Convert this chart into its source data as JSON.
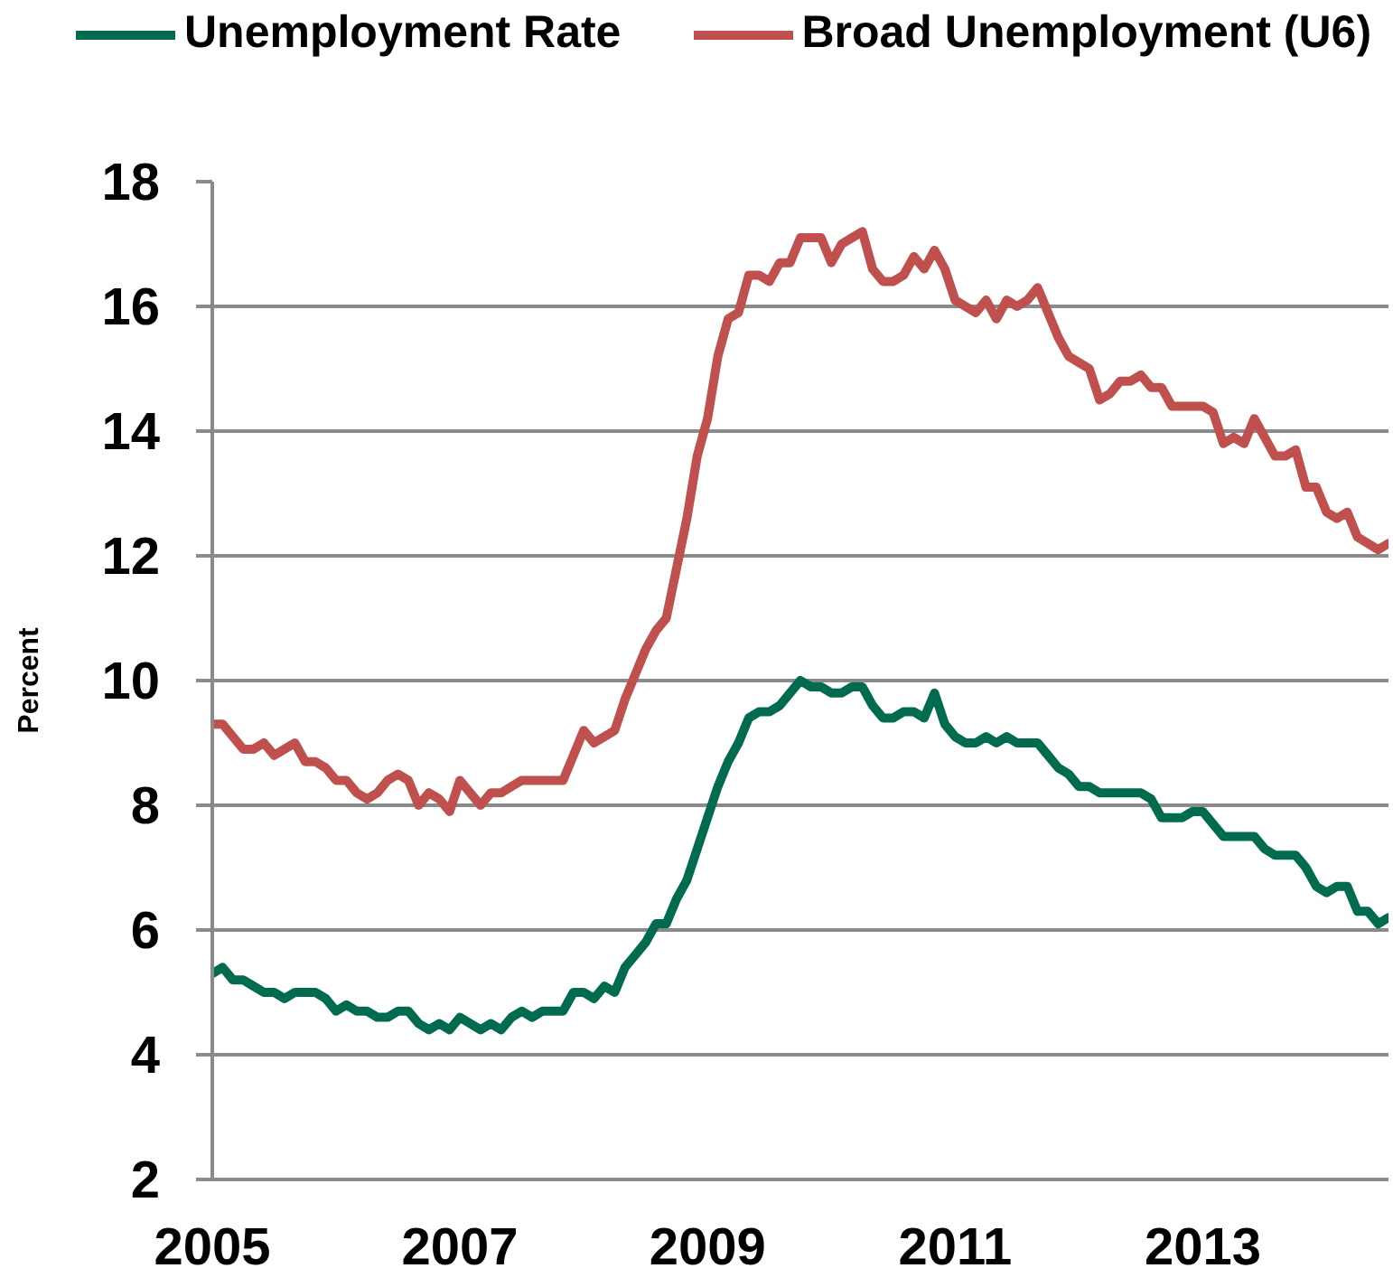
{
  "chart_data": {
    "type": "line",
    "ylabel": "Percent",
    "legend": "top",
    "grid": "y",
    "line_style": "solid",
    "xlim": [
      "2005-01",
      "2014-07"
    ],
    "xticks": [
      "2005",
      "2007",
      "2009",
      "2011",
      "2013"
    ],
    "ylim": [
      2,
      18
    ],
    "yticks": [
      2,
      4,
      6,
      8,
      10,
      12,
      14,
      16,
      18
    ],
    "x": [
      "2005-01",
      "2005-02",
      "2005-03",
      "2005-04",
      "2005-05",
      "2005-06",
      "2005-07",
      "2005-08",
      "2005-09",
      "2005-10",
      "2005-11",
      "2005-12",
      "2006-01",
      "2006-02",
      "2006-03",
      "2006-04",
      "2006-05",
      "2006-06",
      "2006-07",
      "2006-08",
      "2006-09",
      "2006-10",
      "2006-11",
      "2006-12",
      "2007-01",
      "2007-02",
      "2007-03",
      "2007-04",
      "2007-05",
      "2007-06",
      "2007-07",
      "2007-08",
      "2007-09",
      "2007-10",
      "2007-11",
      "2007-12",
      "2008-01",
      "2008-02",
      "2008-03",
      "2008-04",
      "2008-05",
      "2008-06",
      "2008-07",
      "2008-08",
      "2008-09",
      "2008-10",
      "2008-11",
      "2008-12",
      "2009-01",
      "2009-02",
      "2009-03",
      "2009-04",
      "2009-05",
      "2009-06",
      "2009-07",
      "2009-08",
      "2009-09",
      "2009-10",
      "2009-11",
      "2009-12",
      "2010-01",
      "2010-02",
      "2010-03",
      "2010-04",
      "2010-05",
      "2010-06",
      "2010-07",
      "2010-08",
      "2010-09",
      "2010-10",
      "2010-11",
      "2010-12",
      "2011-01",
      "2011-02",
      "2011-03",
      "2011-04",
      "2011-05",
      "2011-06",
      "2011-07",
      "2011-08",
      "2011-09",
      "2011-10",
      "2011-11",
      "2011-12",
      "2012-01",
      "2012-02",
      "2012-03",
      "2012-04",
      "2012-05",
      "2012-06",
      "2012-07",
      "2012-08",
      "2012-09",
      "2012-10",
      "2012-11",
      "2012-12",
      "2013-01",
      "2013-02",
      "2013-03",
      "2013-04",
      "2013-05",
      "2013-06",
      "2013-07",
      "2013-08",
      "2013-09",
      "2013-10",
      "2013-11",
      "2013-12",
      "2014-01",
      "2014-02",
      "2014-03",
      "2014-04",
      "2014-05",
      "2014-06",
      "2014-07"
    ],
    "series": [
      {
        "name": "Unemployment Rate",
        "color": "#006b4f",
        "values": [
          5.3,
          5.4,
          5.2,
          5.2,
          5.1,
          5.0,
          5.0,
          4.9,
          5.0,
          5.0,
          5.0,
          4.9,
          4.7,
          4.8,
          4.7,
          4.7,
          4.6,
          4.6,
          4.7,
          4.7,
          4.5,
          4.4,
          4.5,
          4.4,
          4.6,
          4.5,
          4.4,
          4.5,
          4.4,
          4.6,
          4.7,
          4.6,
          4.7,
          4.7,
          4.7,
          5.0,
          5.0,
          4.9,
          5.1,
          5.0,
          5.4,
          5.6,
          5.8,
          6.1,
          6.1,
          6.5,
          6.8,
          7.3,
          7.8,
          8.3,
          8.7,
          9.0,
          9.4,
          9.5,
          9.5,
          9.6,
          9.8,
          10.0,
          9.9,
          9.9,
          9.8,
          9.8,
          9.9,
          9.9,
          9.6,
          9.4,
          9.4,
          9.5,
          9.5,
          9.4,
          9.8,
          9.3,
          9.1,
          9.0,
          9.0,
          9.1,
          9.0,
          9.1,
          9.0,
          9.0,
          9.0,
          8.8,
          8.6,
          8.5,
          8.3,
          8.3,
          8.2,
          8.2,
          8.2,
          8.2,
          8.2,
          8.1,
          7.8,
          7.8,
          7.8,
          7.9,
          7.9,
          7.7,
          7.5,
          7.5,
          7.5,
          7.5,
          7.3,
          7.2,
          7.2,
          7.2,
          7.0,
          6.7,
          6.6,
          6.7,
          6.7,
          6.3,
          6.3,
          6.1,
          6.2
        ]
      },
      {
        "name": "Broad Unemployment (U6)",
        "color": "#c0504d",
        "values": [
          9.3,
          9.3,
          9.1,
          8.9,
          8.9,
          9.0,
          8.8,
          8.9,
          9.0,
          8.7,
          8.7,
          8.6,
          8.4,
          8.4,
          8.2,
          8.1,
          8.2,
          8.4,
          8.5,
          8.4,
          8.0,
          8.2,
          8.1,
          7.9,
          8.4,
          8.2,
          8.0,
          8.2,
          8.2,
          8.3,
          8.4,
          8.4,
          8.4,
          8.4,
          8.4,
          8.8,
          9.2,
          9.0,
          9.1,
          9.2,
          9.7,
          10.1,
          10.5,
          10.8,
          11.0,
          11.8,
          12.6,
          13.6,
          14.2,
          15.2,
          15.8,
          15.9,
          16.5,
          16.5,
          16.4,
          16.7,
          16.7,
          17.1,
          17.1,
          17.1,
          16.7,
          17.0,
          17.1,
          17.2,
          16.6,
          16.4,
          16.4,
          16.5,
          16.8,
          16.6,
          16.9,
          16.6,
          16.1,
          16.0,
          15.9,
          16.1,
          15.8,
          16.1,
          16.0,
          16.1,
          16.3,
          15.9,
          15.5,
          15.2,
          15.1,
          15.0,
          14.5,
          14.6,
          14.8,
          14.8,
          14.9,
          14.7,
          14.7,
          14.4,
          14.4,
          14.4,
          14.4,
          14.3,
          13.8,
          13.9,
          13.8,
          14.2,
          13.9,
          13.6,
          13.6,
          13.7,
          13.1,
          13.1,
          12.7,
          12.6,
          12.7,
          12.3,
          12.2,
          12.1,
          12.2
        ]
      }
    ]
  }
}
